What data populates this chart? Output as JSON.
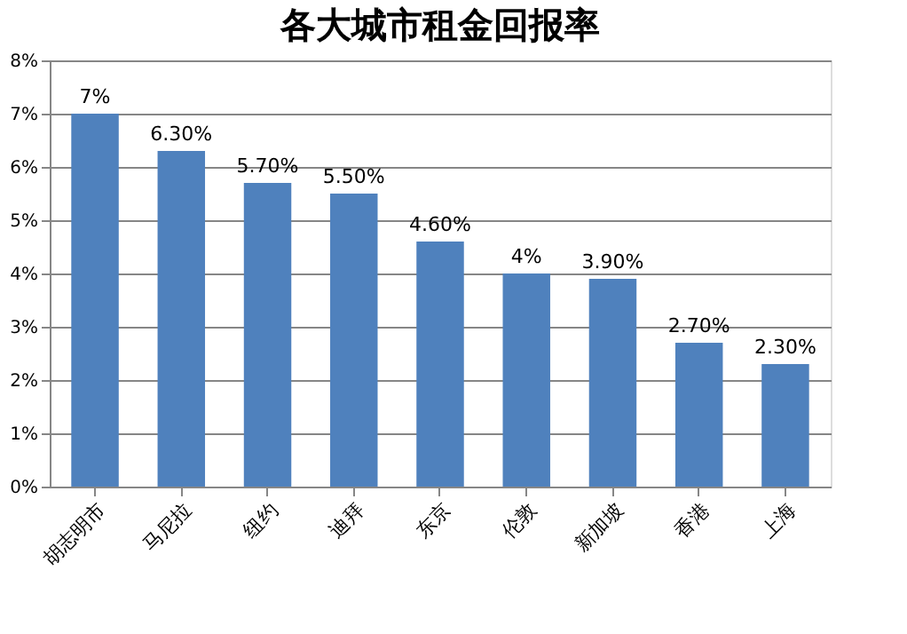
{
  "chart_data": {
    "type": "bar",
    "title": "各大城市租金回报率",
    "categories": [
      "胡志明市",
      "马尼拉",
      "纽约",
      "迪拜",
      "东京",
      "伦敦",
      "新加坡",
      "香港",
      "上海"
    ],
    "values": [
      7,
      6.3,
      5.7,
      5.5,
      4.6,
      4,
      3.9,
      2.7,
      2.3
    ],
    "value_labels": [
      "7%",
      "6.30%",
      "5.70%",
      "5.50%",
      "4.60%",
      "4%",
      "3.90%",
      "2.70%",
      "2.30%"
    ],
    "color": "#4f81bd",
    "ylim": [
      0,
      8
    ],
    "yticks": [
      {
        "value": 0,
        "label": "0%"
      },
      {
        "value": 1,
        "label": "1%"
      },
      {
        "value": 2,
        "label": "2%"
      },
      {
        "value": 3,
        "label": "3%"
      },
      {
        "value": 4,
        "label": "4%"
      },
      {
        "value": 5,
        "label": "5%"
      },
      {
        "value": 6,
        "label": "6%"
      },
      {
        "value": 7,
        "label": "7%"
      },
      {
        "value": 8,
        "label": "8%"
      }
    ],
    "grid": "y"
  }
}
